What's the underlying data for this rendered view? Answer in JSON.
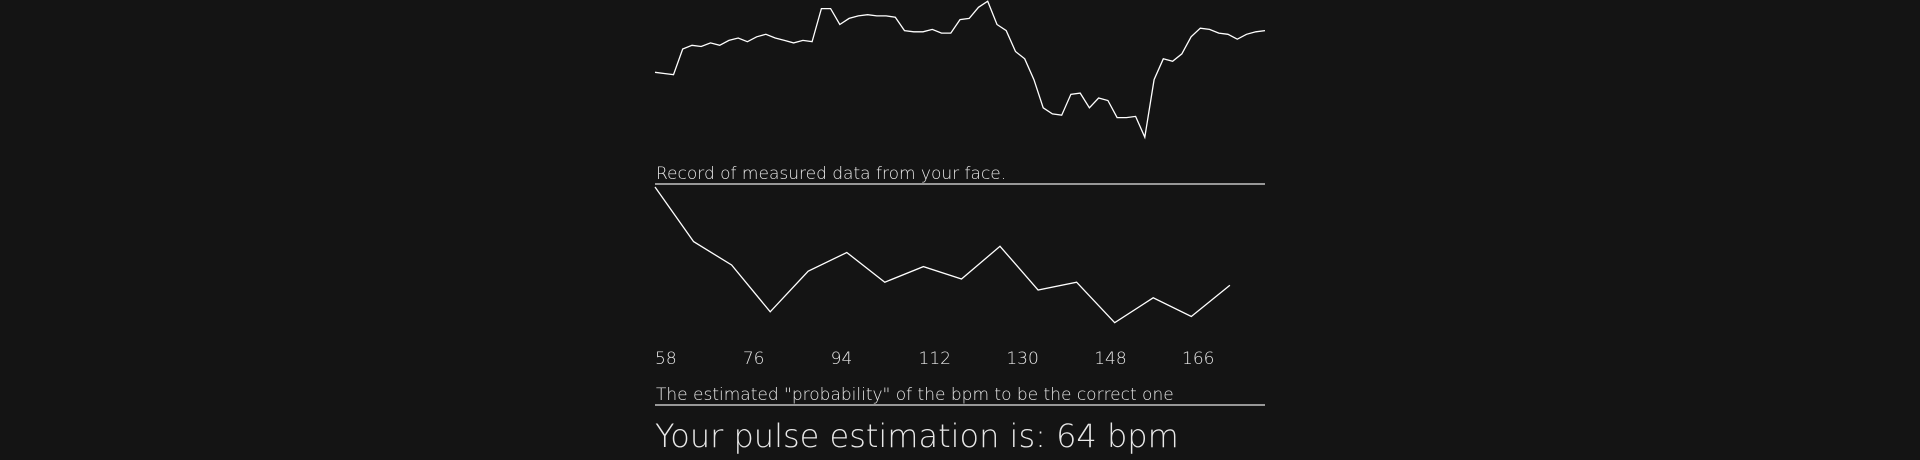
{
  "chart_data": [
    {
      "type": "line",
      "title": "Record of measured data from your face.",
      "color": "#ffffff",
      "ylim": [
        0,
        120
      ],
      "values": [
        61,
        60,
        59,
        80,
        83,
        82,
        85,
        83,
        87,
        89,
        86,
        90,
        92,
        89,
        87,
        85,
        87,
        86,
        113,
        113,
        100,
        105,
        107,
        108,
        107,
        107,
        106,
        95,
        94,
        94,
        96,
        93,
        93,
        104,
        105,
        114,
        119,
        100,
        95,
        78,
        72,
        55,
        32,
        27,
        26,
        43,
        44,
        32,
        40,
        38,
        24,
        24,
        25,
        8,
        55,
        72,
        70,
        76,
        90,
        97,
        96,
        93,
        92,
        88,
        92,
        94,
        95
      ]
    },
    {
      "type": "line",
      "title": "The estimated \"probability\" of the bpm to be the correct one",
      "color": "#ffffff",
      "x": [
        58,
        65.9,
        73.7,
        81.6,
        89.4,
        97.3,
        105.1,
        113,
        120.8,
        128.7,
        136.5,
        144.4,
        152.2,
        160.1,
        167.9,
        175.8
      ],
      "values": [
        1.0,
        0.65,
        0.5,
        0.2,
        0.46,
        0.58,
        0.39,
        0.49,
        0.41,
        0.62,
        0.34,
        0.39,
        0.13,
        0.29,
        0.17,
        0.37
      ],
      "xlim": [
        58,
        183
      ],
      "xticks": [
        58,
        76,
        94,
        112,
        130,
        148,
        166
      ],
      "ylim": [
        0,
        1
      ]
    }
  ],
  "result": "Your pulse estimation is: 64 bpm"
}
